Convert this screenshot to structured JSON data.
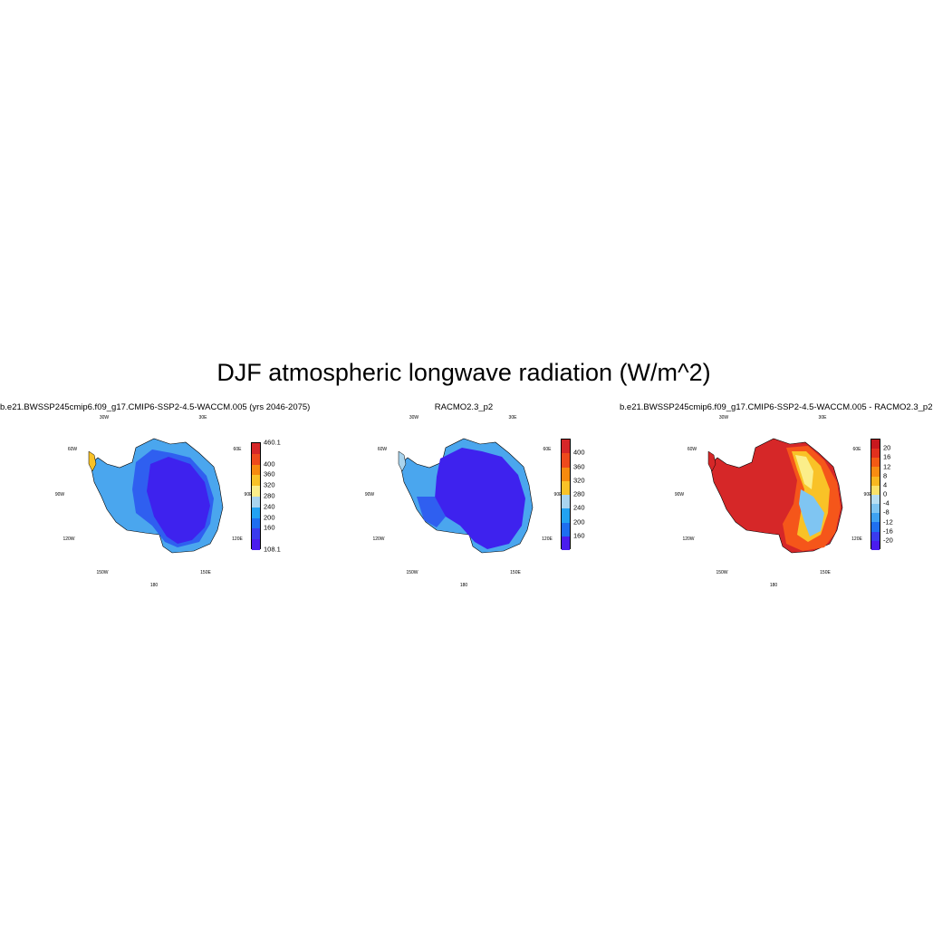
{
  "title": "DJF atmospheric longwave radiation (W/m^2)",
  "lon_labels": {
    "w30": "30W",
    "e30": "30E",
    "w60": "60W",
    "e60": "60E",
    "w90": "90W",
    "e90": "90E",
    "w120": "120W",
    "e120": "120E",
    "w150": "150W",
    "e150": "150E",
    "s180": "180"
  },
  "panels": [
    {
      "title": "b.e21.BWSSP245cmip6.f09_g17.CMIP6-SSP2-4.5-WACCM.005 (yrs 2046-2075)",
      "colorbar": {
        "labels": [
          "460.1",
          "400",
          "360",
          "320",
          "280",
          "240",
          "200",
          "160",
          "108.1"
        ],
        "colors": [
          "#d62728",
          "#ee4a1c",
          "#f68a0f",
          "#f9c227",
          "#fbee8a",
          "#a9d4ee",
          "#22a2f2",
          "#1e6ef0",
          "#3a3bee",
          "#4a1cee"
        ]
      }
    },
    {
      "title": "RACMO2.3_p2",
      "colorbar": {
        "labels": [
          "400",
          "360",
          "320",
          "280",
          "240",
          "200",
          "160"
        ],
        "colors": [
          "#d62728",
          "#ee4a1c",
          "#f68a0f",
          "#f9c227",
          "#a9d4ee",
          "#22a2f2",
          "#1e6ef0",
          "#4a1cee"
        ]
      }
    },
    {
      "title": "b.e21.BWSSP245cmip6.f09_g17.CMIP6-SSP2-4.5-WACCM.005 - RACMO2.3_p2",
      "colorbar": {
        "labels": [
          "20",
          "16",
          "12",
          "8",
          "4",
          "0",
          "-4",
          "-8",
          "-12",
          "-16",
          "-20"
        ],
        "colors": [
          "#c8181e",
          "#e2301e",
          "#f45a14",
          "#f88c12",
          "#f9b820",
          "#fbe26a",
          "#b9dff2",
          "#7fc5f2",
          "#3ea2f2",
          "#1f70f0",
          "#3a3bee",
          "#4a1cee"
        ]
      }
    }
  ]
}
